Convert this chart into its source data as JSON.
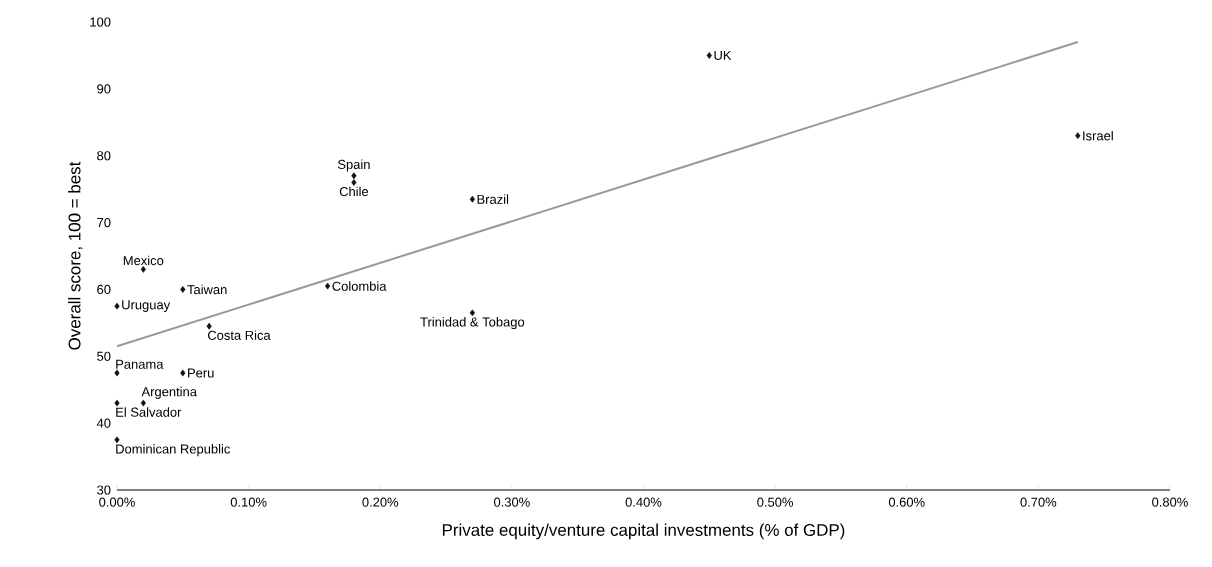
{
  "chart_data": {
    "type": "scatter",
    "xlabel": "Private equity/venture capital investments (% of GDP)",
    "ylabel": "Overall score, 100 = best",
    "xlim": [
      0,
      0.8
    ],
    "ylim": [
      30,
      100
    ],
    "xticks": [
      {
        "value": 0,
        "label": "0.00%"
      },
      {
        "value": 0.1,
        "label": "0.10%"
      },
      {
        "value": 0.2,
        "label": "0.20%"
      },
      {
        "value": 0.3,
        "label": "0.30%"
      },
      {
        "value": 0.4,
        "label": "0.40%"
      },
      {
        "value": 0.5,
        "label": "0.50%"
      },
      {
        "value": 0.6,
        "label": "0.60%"
      },
      {
        "value": 0.7,
        "label": "0.70%"
      },
      {
        "value": 0.8,
        "label": "0.80%"
      }
    ],
    "yticks": [
      30,
      40,
      50,
      60,
      70,
      80,
      90,
      100
    ],
    "series": [
      {
        "marker": "diamond",
        "color": "#111111",
        "x": [
          0.45,
          0.73,
          0.18,
          0.18,
          0.27,
          0.02,
          0.05,
          0.16,
          0,
          0.07,
          0.27,
          0,
          0.05,
          0.02,
          0,
          0
        ],
        "values": [
          95,
          83,
          77,
          76,
          73.5,
          63,
          60,
          60.5,
          57.5,
          54.5,
          56.5,
          47.5,
          47.5,
          43,
          43,
          37.5
        ]
      },
      {
        "type": "line",
        "color": "#999999",
        "x": [
          0,
          0.73
        ],
        "values": [
          51.5,
          97
        ]
      }
    ],
    "annotations": [
      {
        "text": "UK",
        "x": 0.45,
        "y": 95
      },
      {
        "text": "Israel",
        "x": 0.73,
        "y": 83
      },
      {
        "text": "Spain",
        "x": 0.18,
        "y": 77
      },
      {
        "text": "Chile",
        "x": 0.18,
        "y": 76
      },
      {
        "text": "Brazil",
        "x": 0.27,
        "y": 73.5
      },
      {
        "text": "Mexico",
        "x": 0.02,
        "y": 63
      },
      {
        "text": "Taiwan",
        "x": 0.05,
        "y": 60
      },
      {
        "text": "Colombia",
        "x": 0.16,
        "y": 60.5
      },
      {
        "text": "Uruguay",
        "x": 0,
        "y": 57.5
      },
      {
        "text": "Costa Rica",
        "x": 0.07,
        "y": 54.5
      },
      {
        "text": "Trinidad & Tobago",
        "x": 0.27,
        "y": 56.5
      },
      {
        "text": "Panama",
        "x": 0,
        "y": 47.5
      },
      {
        "text": "Peru",
        "x": 0.05,
        "y": 47.5
      },
      {
        "text": "Argentina",
        "x": 0.02,
        "y": 43
      },
      {
        "text": "El Salvador",
        "x": 0,
        "y": 43
      },
      {
        "text": "Dominican Republic",
        "x": 0,
        "y": 37.5
      }
    ]
  }
}
